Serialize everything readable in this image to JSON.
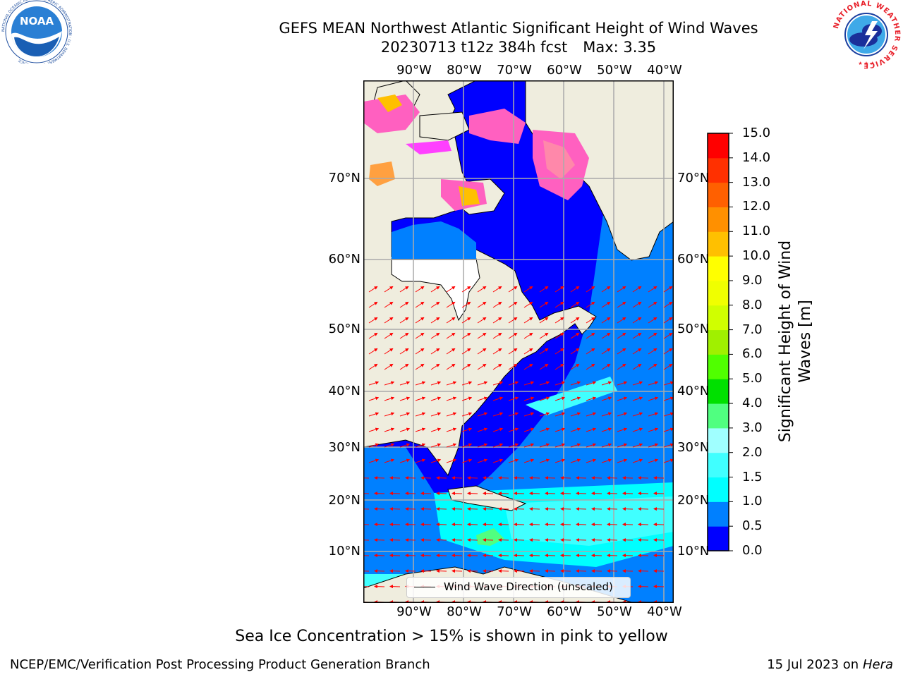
{
  "title": {
    "line1": "GEFS MEAN Northwest Atlantic Significant Height of Wind Waves",
    "date_info": "20230713 t12z 384h fcst",
    "max_info": "Max: 3.35"
  },
  "map": {
    "lon_labels": [
      "90°W",
      "80°W",
      "70°W",
      "60°W",
      "50°W",
      "40°W"
    ],
    "lat_labels": [
      "70°N",
      "60°N",
      "50°N",
      "40°N",
      "30°N",
      "20°N",
      "10°N"
    ],
    "legend_label": "Wind Wave Direction (unscaled)",
    "arrow_color": "#ff0000",
    "land_color": "#efedde",
    "grid_color": "#aaaaaa"
  },
  "colorbar": {
    "label": "Significant Height of Wind Waves [m]",
    "ticks": [
      "15.0",
      "14.0",
      "13.0",
      "12.0",
      "11.0",
      "10.0",
      "9.0",
      "8.0",
      "7.0",
      "6.0",
      "5.0",
      "4.0",
      "3.0",
      "2.0",
      "1.5",
      "1.0",
      "0.5",
      "0.0"
    ],
    "levels": [
      0,
      0.5,
      1.0,
      1.5,
      2.0,
      3.0,
      4.0,
      5.0,
      6.0,
      7.0,
      8.0,
      9.0,
      10.0,
      11.0,
      12.0,
      13.0,
      14.0,
      15.0
    ],
    "colors": [
      "#0000ff",
      "#0080ff",
      "#00ffff",
      "#40ffff",
      "#a0ffff",
      "#50ff80",
      "#00e000",
      "#50ff00",
      "#a0f000",
      "#d0ff00",
      "#f0ff00",
      "#ffff00",
      "#ffc000",
      "#ff9000",
      "#ff6000",
      "#ff3000",
      "#ff0000"
    ]
  },
  "footer": {
    "note": "Sea Ice Concentration > 15% is shown in pink to yellow",
    "branch": "NCEP/EMC/Verification Post Processing Product Generation Branch",
    "date": "15 Jul 2023 on ",
    "machine": "Hera"
  },
  "logos": {
    "noaa_text": "NOAA",
    "noaa_ring": "NATIONAL OCEANIC AND ATMOSPHERIC ADMINISTRATION · U.S. DEPARTMENT OF COMMERCE",
    "nws_ring": "NATIONAL WEATHER SERVICE"
  }
}
